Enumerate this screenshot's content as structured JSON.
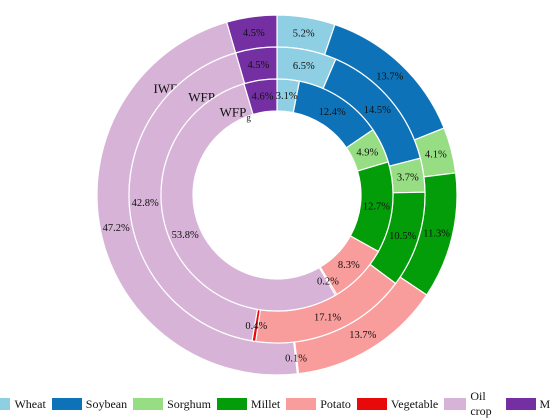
{
  "chart_data": {
    "type": "donut",
    "categories": [
      "Wheat",
      "Soybean",
      "Sorghum",
      "Millet",
      "Potato",
      "Vegetable",
      "Oil crop",
      "Maize"
    ],
    "colors": [
      "#8ecfe3",
      "#0e72b8",
      "#97dd84",
      "#039d0a",
      "#f99c9c",
      "#e80a0a",
      "#d7b4d7",
      "#7430a3"
    ],
    "series": [
      {
        "name": "IWFP",
        "values": [
          5.2,
          13.7,
          4.1,
          11.3,
          13.7,
          0.1,
          47.2,
          4.5
        ],
        "labels": [
          "5.2%",
          "13.7%",
          "4.1%",
          "11.3%",
          "13.7%",
          "0.1%",
          "47.2%",
          "4.5%"
        ]
      },
      {
        "name": "WFP",
        "name_sub": "b",
        "values": [
          6.5,
          14.5,
          3.7,
          10.5,
          17.1,
          0.4,
          42.8,
          4.5
        ],
        "labels": [
          "6.5%",
          "14.5%",
          "3.7%",
          "10.5%",
          "17.1%",
          "0.4%",
          "42.8%",
          "4.5%"
        ]
      },
      {
        "name": "WFP",
        "name_sub": "g",
        "values": [
          3.1,
          12.4,
          4.9,
          12.7,
          8.3,
          0.2,
          53.8,
          4.6
        ],
        "labels": [
          "3.1%",
          "12.4%",
          "4.9%",
          "12.7%",
          "8.3%",
          "0.2%",
          "53.8%",
          "4.6%"
        ]
      }
    ],
    "legend_position": "bottom"
  }
}
